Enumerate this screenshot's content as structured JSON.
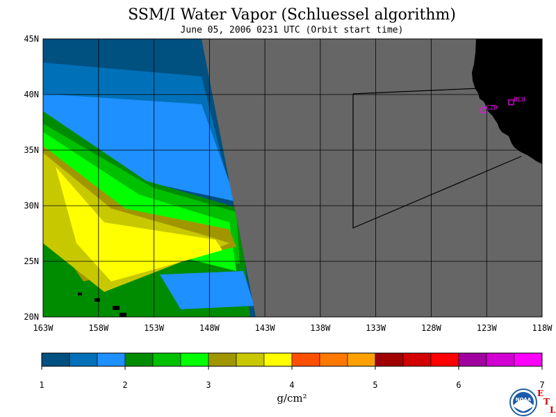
{
  "header": {
    "title": "SSM/I Water Vapor (Schluessel algorithm)",
    "subtitle": "June 05, 2006  0231 UTC  (Orbit start time)"
  },
  "map": {
    "lon_ticks": [
      "163W",
      "158W",
      "153W",
      "148W",
      "143W",
      "138W",
      "133W",
      "128W",
      "123W",
      "118W"
    ],
    "lat_ticks": [
      "45N",
      "40N",
      "35N",
      "30N",
      "25N",
      "20N"
    ],
    "lon_range": [
      -163,
      -118
    ],
    "lat_range": [
      20,
      45
    ],
    "background_color": "#666666",
    "land_color": "#000000",
    "stations": [
      {
        "label": "CZD",
        "lon": -123.3,
        "lat": 38.6
      },
      {
        "label": "BLU",
        "lon": -120.8,
        "lat": 39.3
      }
    ]
  },
  "colorbar": {
    "unit": "g/cm²",
    "tick_labels": [
      "1",
      "2",
      "3",
      "4",
      "5",
      "6",
      "7"
    ],
    "colors": [
      "#005080",
      "#0070b8",
      "#1e90ff",
      "#008c00",
      "#00c000",
      "#00ff00",
      "#a09600",
      "#c8c800",
      "#ffff00",
      "#ff5000",
      "#ff7800",
      "#ffa000",
      "#a00000",
      "#d20000",
      "#ff0000",
      "#a000a0",
      "#d200d2",
      "#ff00ff"
    ]
  },
  "logo": {
    "noaa_text": "NOAA",
    "etl_letters": [
      "E",
      "T",
      "L"
    ]
  }
}
